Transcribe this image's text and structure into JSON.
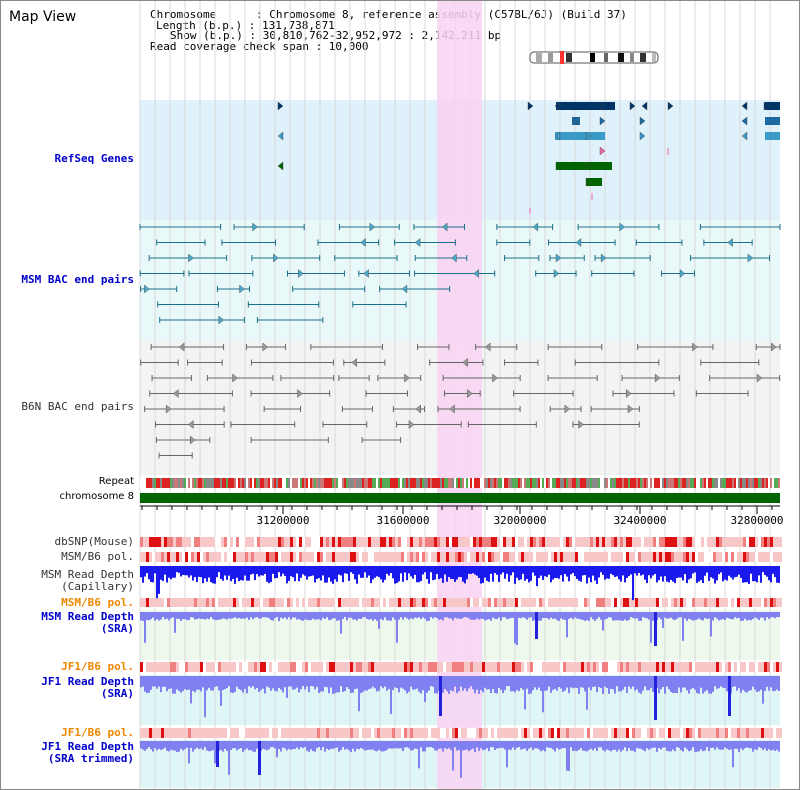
{
  "header": {
    "title": "Map View",
    "info_lines": [
      "Chromosome      : Chromosome 8, reference assembly (C57BL/6J) (Build 37)",
      "Length (b.p.) : 131,738,871",
      "Show (b.p.) : 30,810,762-32,952,972 : 2,142,211 bp",
      "Read coverage check span : 10,000"
    ]
  },
  "tracks": {
    "refseq": "RefSeq Genes",
    "msm_bac": "MSM BAC end pairs",
    "b6n_bac": "B6N BAC end pairs",
    "repeat": "Repeat",
    "chromosome": "chromosome 8",
    "dbsnp": "dbSNP(Mouse)",
    "msm_b6_pol_1": "MSM/B6 pol.",
    "msm_depth_cap": "MSM Read Depth\n(Capillary)",
    "msm_b6_pol_2": "MSM/B6 pol.",
    "msm_depth_sra": "MSM Read Depth\n(SRA)",
    "jf1_b6_pol_1": "JF1/B6 pol.",
    "jf1_depth_sra": "JF1 Read Depth\n(SRA)",
    "jf1_b6_pol_2": "JF1/B6 pol.",
    "jf1_depth_trim": "JF1 Read Depth\n(SRA trimmed)"
  },
  "axis": {
    "ticks": [
      "31200000",
      "31600000",
      "32000000",
      "32400000",
      "32800000"
    ]
  },
  "colors": {
    "refseq_bg": "#dff1fa",
    "bac_bg": "#e9f9f9",
    "highlight": "#f9d2f2",
    "chromosome_bar": "#006400",
    "msm_blue": "#1a1aee",
    "sra_blue": "#8080f0",
    "snp_red": "#dd1111"
  }
}
